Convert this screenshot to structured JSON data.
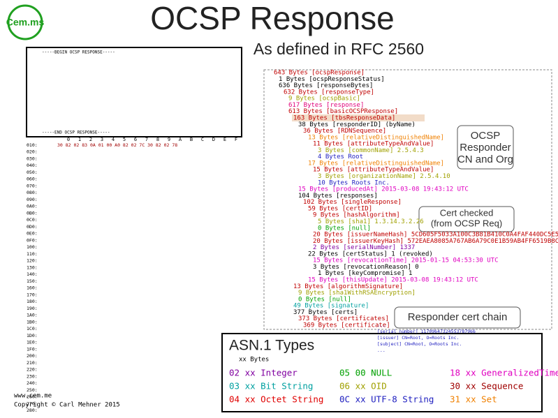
{
  "header": {
    "logo": "Cem.ms",
    "title": "OCSP Response",
    "subtitle": "As defined in RFC 2560"
  },
  "pem": {
    "begin": "-----BEGIN OCSP RESPONSE-----",
    "end": "-----END OCSP RESPONSE-----"
  },
  "hexdump": {
    "columns": [
      "0",
      "1",
      "2",
      "3",
      "4",
      "5",
      "6",
      "7",
      "8",
      "9",
      "A",
      "B",
      "C",
      "D",
      "E",
      "F"
    ],
    "offsets": [
      "010:",
      "020:",
      "030:",
      "040:",
      "050:",
      "060:",
      "070:",
      "080:",
      "090:",
      "0A0:",
      "0B0:",
      "0C0:",
      "0D0:",
      "0E0:",
      "0F0:",
      "100:",
      "110:",
      "120:",
      "130:",
      "140:",
      "150:",
      "160:",
      "170:",
      "180:",
      "190:",
      "1A0:",
      "1B0:",
      "1C0:",
      "1D0:",
      "1E0:",
      "1F0:",
      "200:",
      "210:",
      "220:",
      "230:",
      "240:",
      "250:",
      "260:",
      "270:",
      "280:"
    ],
    "first_row": "30 82 02 83 0A 01 00 A0 82 02 7C 30 82 02 78"
  },
  "tree": [
    {
      "text": "643 Bytes [ocspResponse]",
      "level": 0,
      "color": "#c00000"
    },
    {
      "text": "1 Bytes [ocspResponseStatus]",
      "level": 1,
      "color": "#000000"
    },
    {
      "text": "636 Bytes [responseBytes]",
      "level": 1,
      "color": "#000000"
    },
    {
      "text": "632 Bytes [responseType]",
      "level": 2,
      "color": "#c00000"
    },
    {
      "text": "9 Bytes [ocspBasic]",
      "level": 3,
      "color": "#a0a000"
    },
    {
      "text": "617 Bytes [response]",
      "level": 3,
      "color": "#e0007a"
    },
    {
      "text": "613 Bytes [basicOCSPResponse]",
      "level": 3,
      "color": "#c00000"
    },
    {
      "text": "163 Bytes [tbsResponseData]",
      "level": 4,
      "color": "#c00000"
    },
    {
      "text": "38 Bytes [responderID] (byName)",
      "level": 5,
      "color": "#000000"
    },
    {
      "text": "36 Bytes [RDNSequence]",
      "level": 6,
      "color": "#c00000"
    },
    {
      "text": "13 Bytes [relativeDistinguishedName]",
      "level": 7,
      "color": "#f08000"
    },
    {
      "text": "11 Bytes [attributeTypeAndValue]",
      "level": 8,
      "color": "#c00000"
    },
    {
      "text": "3 Bytes [commonName] 2.5.4.3",
      "level": 9,
      "color": "#a0a000"
    },
    {
      "text": "4 Bytes Root",
      "level": 9,
      "color": "#2020c0"
    },
    {
      "text": "17 Bytes [relativeDistinguishedName]",
      "level": 7,
      "color": "#f08000"
    },
    {
      "text": "15 Bytes [attributeTypeAndValue]",
      "level": 8,
      "color": "#c00000"
    },
    {
      "text": "3 Bytes [organizationName] 2.5.4.10",
      "level": 9,
      "color": "#a0a000"
    },
    {
      "text": "10 Bytes Roots Inc.",
      "level": 9,
      "color": "#2020c0"
    },
    {
      "text": "15 Bytes [producedAt] 2015-03-08 19:43:12 UTC",
      "level": 5,
      "color": "#e000c0"
    },
    {
      "text": "104 Bytes [responses]",
      "level": 5,
      "color": "#000000"
    },
    {
      "text": "102 Bytes [singleResponse]",
      "level": 6,
      "color": "#c00000"
    },
    {
      "text": "59 Bytes [certID]",
      "level": 7,
      "color": "#c00000"
    },
    {
      "text": "9 Bytes [hashAlgorithm]",
      "level": 8,
      "color": "#c00000"
    },
    {
      "text": "5 Bytes [sha1] 1.3.14.3.2.26",
      "level": 9,
      "color": "#a0a000"
    },
    {
      "text": "0 Bytes [null]",
      "level": 9,
      "color": "#00a000"
    },
    {
      "text": "20 Bytes [issuerNameHash] 5CD605F5033A100C3B81B410C0A4FAF440DC5E58",
      "level": 8,
      "color": "#c00000"
    },
    {
      "text": "20 Bytes [issuerKeyHash] 572EAEA8085A767AB6A79C0E1B59AB4FF6519B8C",
      "level": 8,
      "color": "#c00000"
    },
    {
      "text": "2 Bytes [serialNumber] 1337",
      "level": 8,
      "color": "#8000a0"
    },
    {
      "text": "22 Bytes [certStatus] 1 (revoked)",
      "level": 7,
      "color": "#000000"
    },
    {
      "text": "15 Bytes [revocationTime] 2015-01-15 04:53:30 UTC",
      "level": 8,
      "color": "#e000c0"
    },
    {
      "text": "3 Bytes [revocationReason] 0",
      "level": 8,
      "color": "#000000"
    },
    {
      "text": "1 Bytes [keyCompromise] 1",
      "level": 9,
      "color": "#000000"
    },
    {
      "text": "15 Bytes [thisUpdate] 2015-03-08 19:43:12 UTC",
      "level": 7,
      "color": "#e000c0"
    },
    {
      "text": "13 Bytes [algorithmSignature]",
      "level": 4,
      "color": "#c00000"
    },
    {
      "text": "9 Bytes [sha1WithRSAEncryption]",
      "level": 5,
      "color": "#a0a000"
    },
    {
      "text": "0 Bytes [null]",
      "level": 5,
      "color": "#00a000"
    },
    {
      "text": "49 Bytes [signature]",
      "level": 4,
      "color": "#00a0a0"
    },
    {
      "text": "377 Bytes [certs]",
      "level": 4,
      "color": "#000000"
    },
    {
      "text": "373 Bytes [certificates]",
      "level": 5,
      "color": "#c00000"
    },
    {
      "text": "369 Bytes [certificate]",
      "level": 6,
      "color": "#c00000"
    }
  ],
  "cert_details": [
    "...",
    "[serial number] 11709647324553787966",
    "[issuer] CN=Root, O=Roots Inc.",
    "[subject] CN=Root, O=Roots Inc.",
    "..."
  ],
  "callouts": {
    "responder": [
      "OCSP",
      "Responder",
      "CN and Org"
    ],
    "cert_checked": [
      "Cert checked",
      "(from OCSP Req)"
    ],
    "chain": "Responder cert chain"
  },
  "legend": {
    "title": "ASN.1 Types",
    "subtitle": "xx Bytes",
    "items": [
      {
        "label": "02 xx Integer",
        "color": "#8000a0"
      },
      {
        "label": "03 xx Bit String",
        "color": "#00a0a0"
      },
      {
        "label": "04 xx Octet String",
        "color": "#e00000"
      },
      {
        "label": "05 00 NULL",
        "color": "#00a000"
      },
      {
        "label": "06 xx OID",
        "color": "#a0a000"
      },
      {
        "label": "0C xx UTF-8 String",
        "color": "#2020c0"
      },
      {
        "label": "18 xx GeneralizedTime",
        "color": "#e000c0"
      },
      {
        "label": "30 xx Sequence",
        "color": "#a00000"
      },
      {
        "label": "31 xx Set",
        "color": "#f08000"
      }
    ]
  },
  "footer": {
    "site": "www.cem.me",
    "copyright": "Copyright © Carl Mehner 2015"
  }
}
